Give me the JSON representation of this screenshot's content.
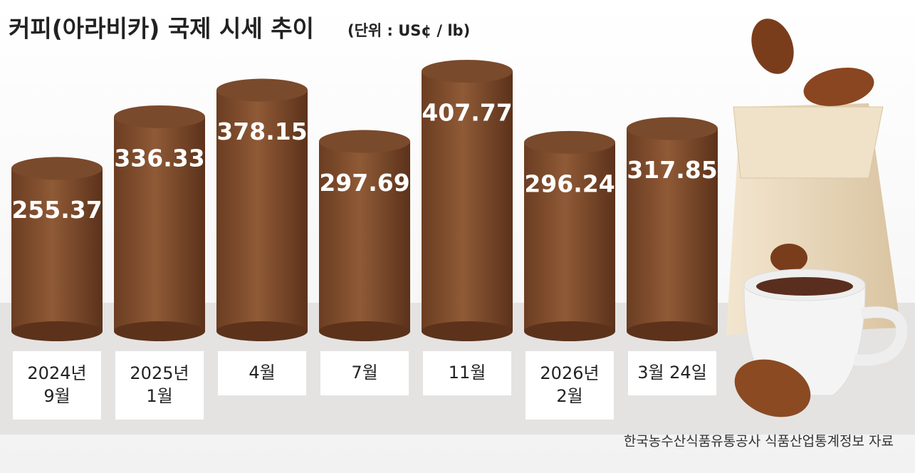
{
  "chart_data": {
    "type": "bar",
    "title": "커피(아라비카) 국제 시세 추이",
    "subtitle": "(단위 : US¢ / lb)",
    "categories": [
      [
        "2024년",
        "9월"
      ],
      [
        "2025년",
        "1월"
      ],
      [
        "4월"
      ],
      [
        "7월"
      ],
      [
        "11월"
      ],
      [
        "2026년",
        "2월"
      ],
      [
        "3월 24일"
      ]
    ],
    "values": [
      255.37,
      336.33,
      378.15,
      297.69,
      407.77,
      296.24,
      317.85
    ],
    "color": "#7a4a2c",
    "source": "한국농수산식품유통공사 식품산업통계정보 자료"
  }
}
